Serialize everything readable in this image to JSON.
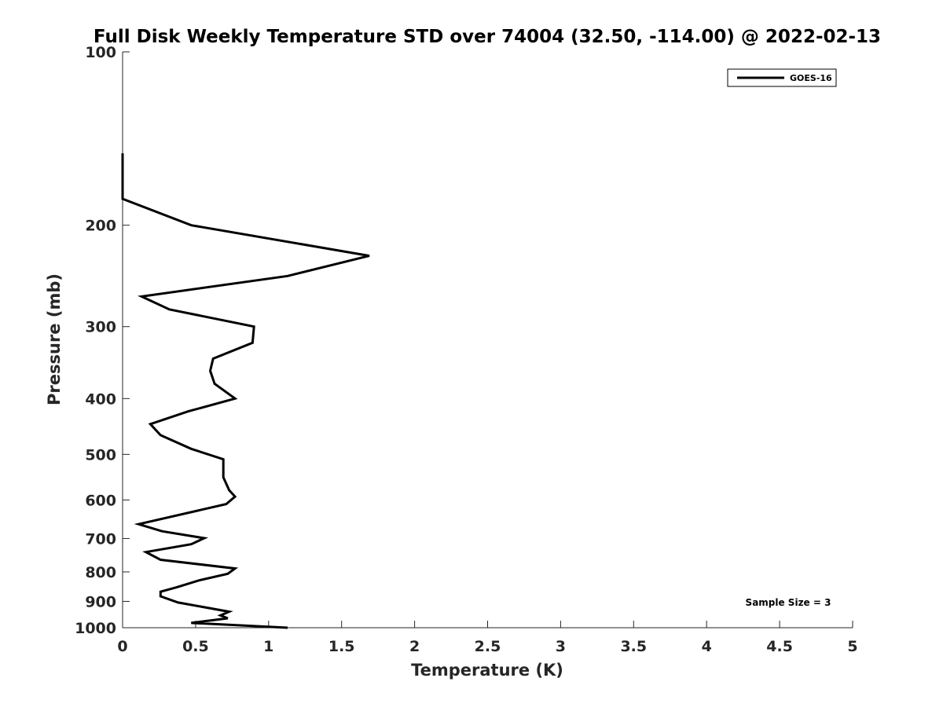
{
  "chart_data": {
    "type": "line",
    "title": "Full Disk Weekly Temperature STD over 74004 (32.50, -114.00) @ 2022-02-13",
    "xlabel": "Temperature (K)",
    "ylabel": "Pressure (mb)",
    "xlim": [
      0,
      5
    ],
    "ylim": [
      1000,
      100
    ],
    "y_scale": "log",
    "y_reversed": true,
    "grid": false,
    "x_ticks": [
      0,
      0.5,
      1,
      1.5,
      2,
      2.5,
      3,
      3.5,
      4,
      4.5,
      5
    ],
    "x_tick_labels": [
      "0",
      "0.5",
      "1",
      "1.5",
      "2",
      "2.5",
      "3",
      "3.5",
      "4",
      "4.5",
      "5"
    ],
    "y_ticks": [
      100,
      200,
      300,
      400,
      500,
      600,
      700,
      800,
      900,
      1000
    ],
    "y_tick_labels": [
      "100",
      "200",
      "300",
      "400",
      "500",
      "600",
      "700",
      "800",
      "900",
      "1000"
    ],
    "legend": {
      "placement": "top-right",
      "entries": [
        "GOES-16"
      ]
    },
    "annotation": "Sample Size = 3",
    "series": [
      {
        "name": "GOES-16",
        "color": "#000000",
        "points": [
          {
            "x": 0.0,
            "p": 150
          },
          {
            "x": 0.0,
            "p": 165
          },
          {
            "x": 0.0,
            "p": 180
          },
          {
            "x": 0.47,
            "p": 200
          },
          {
            "x": 1.69,
            "p": 226
          },
          {
            "x": 1.13,
            "p": 245
          },
          {
            "x": 0.13,
            "p": 266
          },
          {
            "x": 0.32,
            "p": 280
          },
          {
            "x": 0.9,
            "p": 300
          },
          {
            "x": 0.89,
            "p": 320
          },
          {
            "x": 0.62,
            "p": 341
          },
          {
            "x": 0.6,
            "p": 358
          },
          {
            "x": 0.63,
            "p": 377
          },
          {
            "x": 0.77,
            "p": 400
          },
          {
            "x": 0.45,
            "p": 421
          },
          {
            "x": 0.19,
            "p": 443
          },
          {
            "x": 0.26,
            "p": 463
          },
          {
            "x": 0.47,
            "p": 489
          },
          {
            "x": 0.69,
            "p": 510
          },
          {
            "x": 0.69,
            "p": 548
          },
          {
            "x": 0.73,
            "p": 577
          },
          {
            "x": 0.77,
            "p": 592
          },
          {
            "x": 0.71,
            "p": 610
          },
          {
            "x": 0.11,
            "p": 661
          },
          {
            "x": 0.27,
            "p": 680
          },
          {
            "x": 0.56,
            "p": 699
          },
          {
            "x": 0.47,
            "p": 716
          },
          {
            "x": 0.16,
            "p": 739
          },
          {
            "x": 0.26,
            "p": 762
          },
          {
            "x": 0.77,
            "p": 789
          },
          {
            "x": 0.72,
            "p": 806
          },
          {
            "x": 0.52,
            "p": 828
          },
          {
            "x": 0.37,
            "p": 851
          },
          {
            "x": 0.26,
            "p": 866
          },
          {
            "x": 0.26,
            "p": 882
          },
          {
            "x": 0.38,
            "p": 904
          },
          {
            "x": 0.73,
            "p": 938
          },
          {
            "x": 0.67,
            "p": 952
          },
          {
            "x": 0.72,
            "p": 963
          },
          {
            "x": 0.47,
            "p": 981
          },
          {
            "x": 1.13,
            "p": 1000
          }
        ]
      }
    ]
  }
}
